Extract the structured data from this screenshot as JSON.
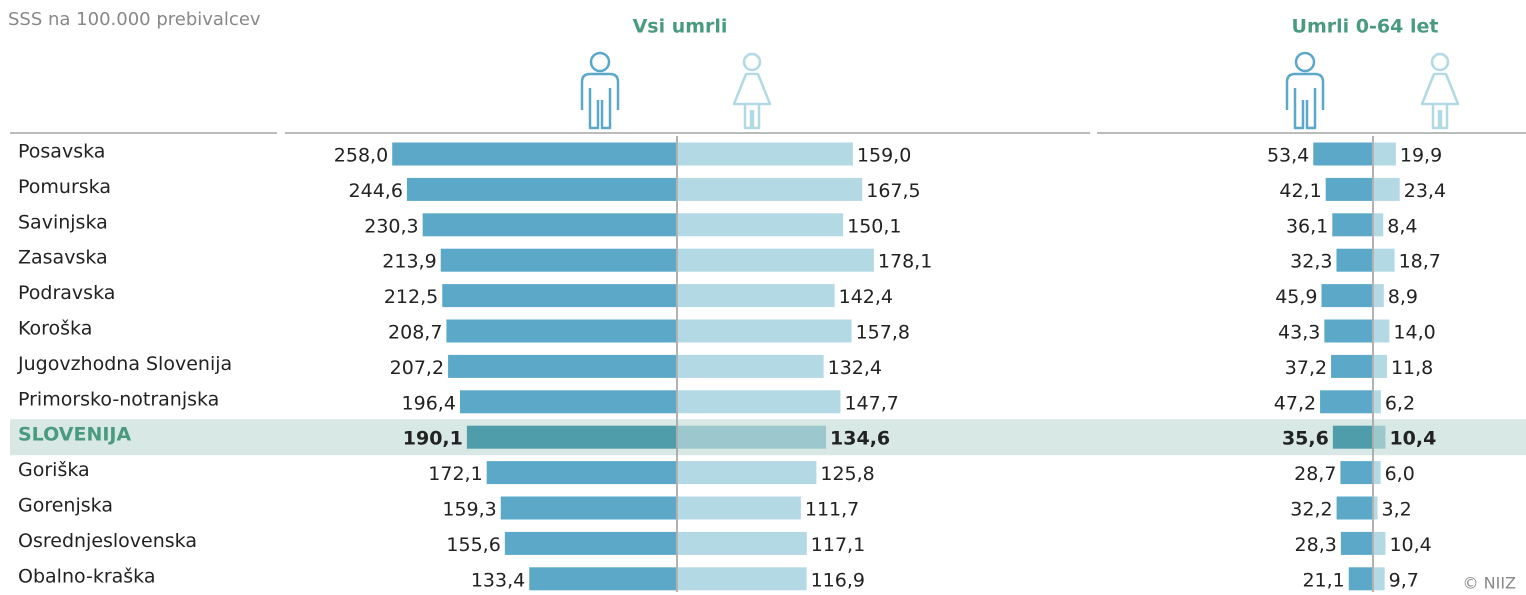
{
  "chart_data": {
    "type": "butterfly_bar",
    "subtitle": "SSS na 100.000 prebivalcev",
    "credit": "© NIIZ",
    "categories": [
      "Posavska",
      "Pomurska",
      "Savinjska",
      "Zasavska",
      "Podravska",
      "Koroška",
      "Jugovzhodna Slovenija",
      "Primorsko-notranjska",
      "SLOVENIJA",
      "Goriška",
      "Gorenjska",
      "Osrednjeslovenska",
      "Obalno-kraška"
    ],
    "highlight_index": 8,
    "panels": [
      {
        "title": "Vsi umrli",
        "series": [
          {
            "color": "#5ba8c8",
            "highlight_color": "#4f9cab",
            "values": [
              258.0,
              244.6,
              230.3,
              213.9,
              212.5,
              208.7,
              207.2,
              196.4,
              190.1,
              172.1,
              159.3,
              155.6,
              133.4
            ],
            "value_labels": [
              "258,0",
              "244,6",
              "230,3",
              "213,9",
              "212,5",
              "208,7",
              "207,2",
              "196,4",
              "190,1",
              "172,1",
              "159,3",
              "155,6",
              "133,4"
            ]
          },
          {
            "color": "#b3d9e4",
            "highlight_color": "#9cc7cc",
            "values": [
              159.0,
              167.5,
              150.1,
              178.1,
              142.4,
              157.8,
              132.4,
              147.7,
              134.6,
              125.8,
              111.7,
              117.1,
              116.9
            ],
            "value_labels": [
              "159,0",
              "167,5",
              "150,1",
              "178,1",
              "142,4",
              "157,8",
              "132,4",
              "147,7",
              "134,6",
              "125,8",
              "111,7",
              "117,1",
              "116,9"
            ]
          }
        ]
      },
      {
        "title": "Umrli 0-64 let",
        "series": [
          {
            "color": "#5ba8c8",
            "highlight_color": "#4f9cab",
            "values": [
              53.4,
              42.1,
              36.1,
              32.3,
              45.9,
              43.3,
              37.2,
              47.2,
              35.6,
              28.7,
              32.2,
              28.3,
              21.1
            ],
            "value_labels": [
              "53,4",
              "42,1",
              "36,1",
              "32,3",
              "45,9",
              "43,3",
              "37,2",
              "47,2",
              "35,6",
              "28,7",
              "32,2",
              "28,3",
              "21,1"
            ]
          },
          {
            "color": "#b3d9e4",
            "highlight_color": "#9cc7cc",
            "values": [
              19.9,
              23.4,
              8.4,
              18.7,
              8.9,
              14.0,
              11.8,
              6.2,
              10.4,
              6.0,
              3.2,
              10.4,
              9.7
            ],
            "value_labels": [
              "19,9",
              "23,4",
              "8,4",
              "18,7",
              "8,9",
              "14,0",
              "11,8",
              "6,2",
              "10,4",
              "6,0",
              "3,2",
              "10,4",
              "9,7"
            ]
          }
        ]
      }
    ]
  }
}
